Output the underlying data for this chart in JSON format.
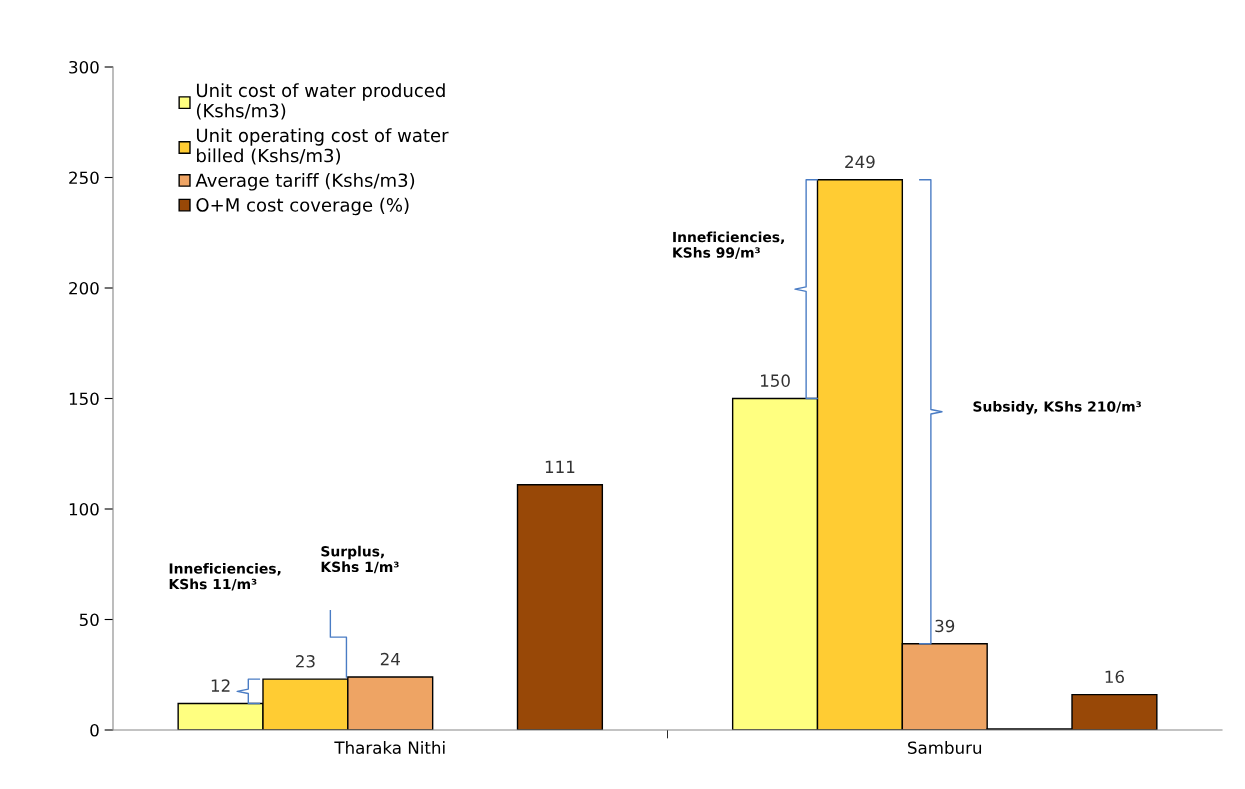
{
  "chart_data": {
    "type": "bar",
    "categories": [
      "Tharaka Nithi",
      "Samburu"
    ],
    "series": [
      {
        "name": "Unit cost of water produced (Kshs/m3)",
        "color": "#ffff80",
        "values": [
          12,
          150
        ],
        "value_labels": [
          "12",
          "150"
        ]
      },
      {
        "name": "Unit operating cost of water billed (Kshs/m3)",
        "color": "#ffcc33",
        "values": [
          23,
          249
        ],
        "value_labels": [
          "23",
          "249"
        ]
      },
      {
        "name": "Average tariff (Kshs/m3)",
        "color": "#eea464",
        "values": [
          24,
          39
        ],
        "value_labels": [
          "24",
          "39"
        ]
      },
      {
        "color": "#7030a0",
        "values": [
          null,
          0.5
        ]
      },
      {
        "name": "O+M cost coverage (%)",
        "color": "#984807",
        "values": [
          111,
          16
        ],
        "value_labels": [
          "111",
          "16"
        ]
      }
    ],
    "ylim": [
      0,
      300
    ],
    "yticks": [
      0,
      50,
      100,
      150,
      200,
      250,
      300
    ],
    "grid": false,
    "legend": "top left",
    "annotations": [
      "Inneficiencies,\nKShs 11/m³",
      "Surplus,\nKShs 1/m³",
      "Inneficiencies,\nKShs 99/m³",
      "Subsidy, KShs 210/m³"
    ]
  }
}
